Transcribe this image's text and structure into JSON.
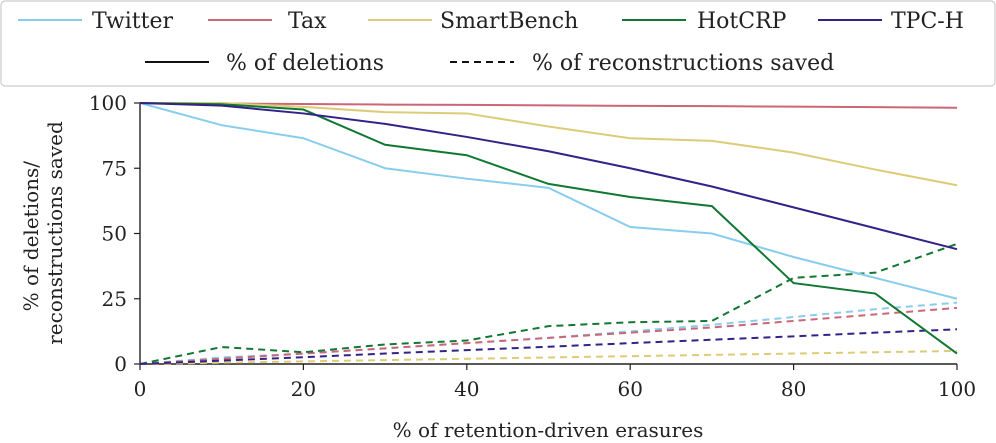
{
  "chart_data": {
    "type": "line",
    "xlabel": "% of retention-driven erasures",
    "ylabel": [
      "% of deletions/",
      "reconstructions saved"
    ],
    "xlim": [
      0,
      100
    ],
    "ylim": [
      0,
      100
    ],
    "xticks": [
      0,
      20,
      40,
      60,
      80,
      100
    ],
    "yticks": [
      0,
      25,
      50,
      75,
      100
    ],
    "grid": false,
    "legend_position": "top",
    "style_legend": [
      {
        "label": "% of deletions",
        "dash": "solid"
      },
      {
        "label": "% of reconstructions saved",
        "dash": "dashed"
      }
    ],
    "x": [
      0,
      10,
      20,
      30,
      40,
      50,
      60,
      70,
      80,
      90,
      100
    ],
    "series": [
      {
        "name": "Twitter",
        "color": "#88ccee",
        "deletions": [
          100,
          91.5,
          86.5,
          75,
          71,
          67.5,
          52.5,
          50,
          41,
          33,
          25
        ],
        "reconstructions_saved": [
          0,
          2.5,
          4,
          6,
          8,
          10,
          12.5,
          15,
          18,
          21,
          23.5
        ]
      },
      {
        "name": "Tax",
        "color": "#cc6677",
        "deletions": [
          100,
          99.8,
          99.6,
          99.4,
          99.3,
          99.1,
          98.9,
          98.8,
          98.6,
          98.4,
          98.2
        ],
        "reconstructions_saved": [
          0,
          2,
          4,
          6,
          8,
          10,
          12,
          14,
          16.5,
          19,
          21.5
        ]
      },
      {
        "name": "SmartBench",
        "color": "#ddcc77",
        "deletions": [
          100,
          100,
          98.5,
          96.5,
          96,
          91,
          86.5,
          85.5,
          81,
          74.5,
          68.5
        ],
        "reconstructions_saved": [
          0,
          0.5,
          1,
          1.5,
          2,
          2.5,
          3,
          3.5,
          4,
          4.5,
          5
        ]
      },
      {
        "name": "HotCRP",
        "color": "#117733",
        "deletions": [
          100,
          99.5,
          97.5,
          84,
          80,
          69,
          64,
          60.5,
          31,
          27,
          4
        ],
        "reconstructions_saved": [
          0,
          6.5,
          4.5,
          7.5,
          9,
          14.5,
          16,
          16.5,
          33,
          35,
          46
        ]
      },
      {
        "name": "TPC-H",
        "color": "#332288",
        "deletions": [
          100,
          99,
          96,
          92,
          87,
          81.5,
          75,
          68,
          60,
          52,
          44
        ],
        "reconstructions_saved": [
          0,
          1.3,
          2.6,
          4,
          5.3,
          6.6,
          8,
          9.3,
          10.6,
          12,
          13.3
        ]
      }
    ]
  }
}
